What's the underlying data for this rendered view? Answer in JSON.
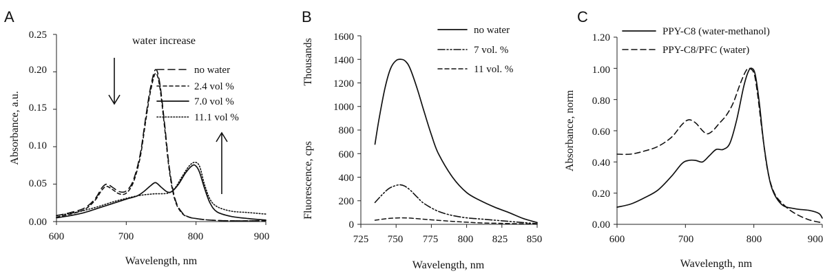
{
  "chart_data": [
    {
      "panel": "A",
      "type": "line",
      "title": "",
      "xlabel": "Wavelength, nm",
      "ylabel": "Absorbance, a.u.",
      "xlim": [
        600,
        900
      ],
      "ylim": [
        0,
        0.25
      ],
      "xticks": [
        600,
        700,
        800,
        900
      ],
      "yticks": [
        "0.00",
        "0.05",
        "0.10",
        "0.15",
        "0.20",
        "0.25"
      ],
      "grid": false,
      "legend_position": "right",
      "annotations": [
        "water increase"
      ],
      "series": [
        {
          "name": "no  water",
          "dash": "10,6",
          "width": 1.6,
          "x": [
            600,
            620,
            640,
            655,
            665,
            672,
            680,
            690,
            700,
            710,
            720,
            728,
            735,
            742,
            748,
            755,
            762,
            770,
            780,
            790,
            800,
            820,
            850,
            900
          ],
          "y": [
            0.008,
            0.012,
            0.018,
            0.03,
            0.045,
            0.05,
            0.046,
            0.04,
            0.041,
            0.055,
            0.09,
            0.14,
            0.18,
            0.203,
            0.185,
            0.13,
            0.07,
            0.03,
            0.012,
            0.006,
            0.004,
            0.002,
            0.001,
            0.001
          ]
        },
        {
          "name": "2.4 vol %",
          "dash": "5,4",
          "width": 1.6,
          "x": [
            600,
            620,
            640,
            655,
            665,
            672,
            680,
            690,
            700,
            710,
            720,
            728,
            735,
            742,
            748,
            755,
            762,
            770,
            780,
            790,
            800,
            820,
            850,
            900
          ],
          "y": [
            0.006,
            0.01,
            0.016,
            0.028,
            0.042,
            0.047,
            0.043,
            0.037,
            0.038,
            0.052,
            0.086,
            0.135,
            0.175,
            0.198,
            0.18,
            0.125,
            0.066,
            0.028,
            0.011,
            0.006,
            0.004,
            0.002,
            0.001,
            0.001
          ]
        },
        {
          "name": "7.0 vol %",
          "dash": "",
          "width": 1.7,
          "x": [
            600,
            620,
            640,
            660,
            680,
            700,
            715,
            725,
            735,
            742,
            750,
            758,
            765,
            775,
            785,
            795,
            800,
            805,
            812,
            820,
            830,
            850,
            875,
            900
          ],
          "y": [
            0.005,
            0.008,
            0.012,
            0.018,
            0.024,
            0.03,
            0.034,
            0.04,
            0.048,
            0.052,
            0.046,
            0.04,
            0.04,
            0.05,
            0.065,
            0.075,
            0.074,
            0.066,
            0.045,
            0.025,
            0.013,
            0.007,
            0.004,
            0.002
          ]
        },
        {
          "name": "11.1 vol %",
          "dash": "1.5,2.5",
          "width": 1.6,
          "x": [
            600,
            620,
            640,
            660,
            680,
            700,
            720,
            740,
            760,
            770,
            780,
            790,
            798,
            805,
            812,
            820,
            830,
            850,
            875,
            900
          ],
          "y": [
            0.008,
            0.011,
            0.015,
            0.02,
            0.026,
            0.031,
            0.035,
            0.037,
            0.038,
            0.045,
            0.06,
            0.074,
            0.079,
            0.074,
            0.05,
            0.03,
            0.02,
            0.014,
            0.012,
            0.01
          ]
        }
      ]
    },
    {
      "panel": "B",
      "type": "line",
      "title": "",
      "xlabel": "Wavelength, nm",
      "ylabel": "Fluorescence, cps",
      "ylabel_secondary": "Thousands",
      "xlim": [
        725,
        850
      ],
      "ylim": [
        0,
        1600
      ],
      "xticks": [
        725,
        750,
        775,
        800,
        825,
        850
      ],
      "yticks": [
        "0",
        "200",
        "400",
        "600",
        "800",
        "1000",
        "1200",
        "1400",
        "1600"
      ],
      "grid": false,
      "legend_position": "top-right",
      "series": [
        {
          "name": "no water",
          "dash": "",
          "width": 1.7,
          "x": [
            735,
            738,
            742,
            746,
            750,
            754,
            757,
            760,
            765,
            770,
            775,
            780,
            790,
            800,
            810,
            820,
            830,
            840,
            850
          ],
          "y": [
            680,
            900,
            1150,
            1320,
            1390,
            1400,
            1380,
            1320,
            1150,
            950,
            760,
            600,
            400,
            270,
            200,
            145,
            100,
            50,
            15
          ]
        },
        {
          "name": "7 vol. %",
          "dash": "10,3,2,3,2,3",
          "width": 1.6,
          "x": [
            735,
            740,
            745,
            750,
            753,
            756,
            760,
            765,
            770,
            780,
            790,
            800,
            810,
            820,
            830,
            840,
            850
          ],
          "y": [
            185,
            250,
            305,
            330,
            335,
            325,
            290,
            230,
            175,
            110,
            75,
            55,
            45,
            35,
            25,
            15,
            5
          ]
        },
        {
          "name": "11 vol. %",
          "dash": "6,4",
          "width": 1.5,
          "x": [
            735,
            745,
            755,
            765,
            775,
            790,
            800,
            810,
            825,
            840,
            850
          ],
          "y": [
            35,
            50,
            55,
            48,
            38,
            25,
            18,
            12,
            8,
            4,
            2
          ]
        }
      ]
    },
    {
      "panel": "C",
      "type": "line",
      "title": "",
      "xlabel": "Wavelength, nm",
      "ylabel": "Absorbance, norm",
      "xlim": [
        600,
        900
      ],
      "ylim": [
        0,
        1.2
      ],
      "xticks": [
        600,
        700,
        800,
        900
      ],
      "yticks": [
        "0.00",
        "0.20",
        "0.40",
        "0.60",
        "0.80",
        "1.00",
        "1.20"
      ],
      "grid": false,
      "legend_position": "top",
      "series": [
        {
          "name": "PPY-C8 (water-methanol)",
          "dash": "",
          "width": 1.7,
          "x": [
            600,
            620,
            640,
            660,
            680,
            695,
            705,
            715,
            725,
            735,
            745,
            755,
            765,
            775,
            785,
            792,
            797,
            802,
            808,
            815,
            825,
            840,
            860,
            880,
            895,
            900
          ],
          "y": [
            0.11,
            0.13,
            0.17,
            0.22,
            0.31,
            0.39,
            0.41,
            0.41,
            0.4,
            0.44,
            0.48,
            0.48,
            0.52,
            0.67,
            0.88,
            0.98,
            1.0,
            0.96,
            0.78,
            0.5,
            0.25,
            0.13,
            0.1,
            0.09,
            0.07,
            0.04
          ]
        },
        {
          "name": "PPY-C8/PFC (water)",
          "dash": "8,5",
          "width": 1.6,
          "x": [
            600,
            620,
            640,
            660,
            680,
            695,
            705,
            715,
            725,
            732,
            740,
            750,
            760,
            770,
            780,
            788,
            793,
            800,
            805,
            812,
            820,
            830,
            845,
            860,
            880,
            900
          ],
          "y": [
            0.45,
            0.45,
            0.47,
            0.5,
            0.56,
            0.64,
            0.67,
            0.65,
            0.6,
            0.58,
            0.6,
            0.65,
            0.7,
            0.78,
            0.9,
            0.98,
            1.0,
            0.97,
            0.85,
            0.6,
            0.35,
            0.2,
            0.12,
            0.07,
            0.03,
            0.01
          ]
        }
      ]
    }
  ]
}
